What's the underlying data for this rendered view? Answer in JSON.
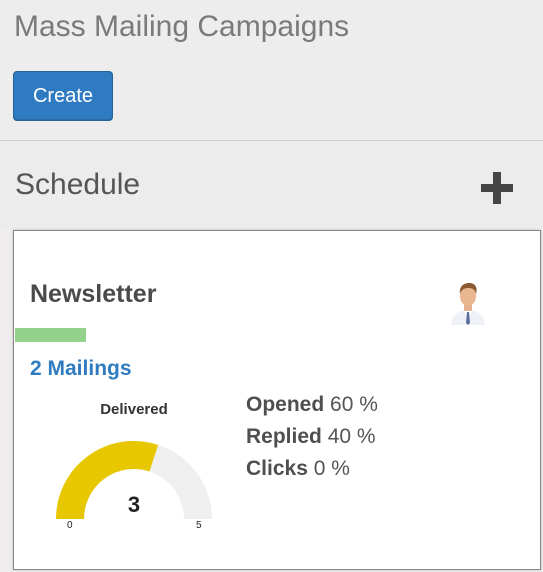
{
  "page": {
    "title": "Mass Mailing Campaigns",
    "create_label": "Create"
  },
  "column": {
    "title": "Schedule",
    "add_icon": "plus-icon"
  },
  "card": {
    "title": "Newsletter",
    "color_tag": "#93d28d",
    "avatar_icon": "user-avatar",
    "mailings_label": "2 Mailings",
    "gauge": {
      "label": "Delivered",
      "value": 3,
      "min": 0,
      "max": 5,
      "fill_color": "#e6c700",
      "track_color": "#efefef"
    },
    "stats": [
      {
        "label": "Opened",
        "value": "60 %"
      },
      {
        "label": "Replied",
        "value": "40 %"
      },
      {
        "label": "Clicks",
        "value": "0 %"
      }
    ]
  }
}
